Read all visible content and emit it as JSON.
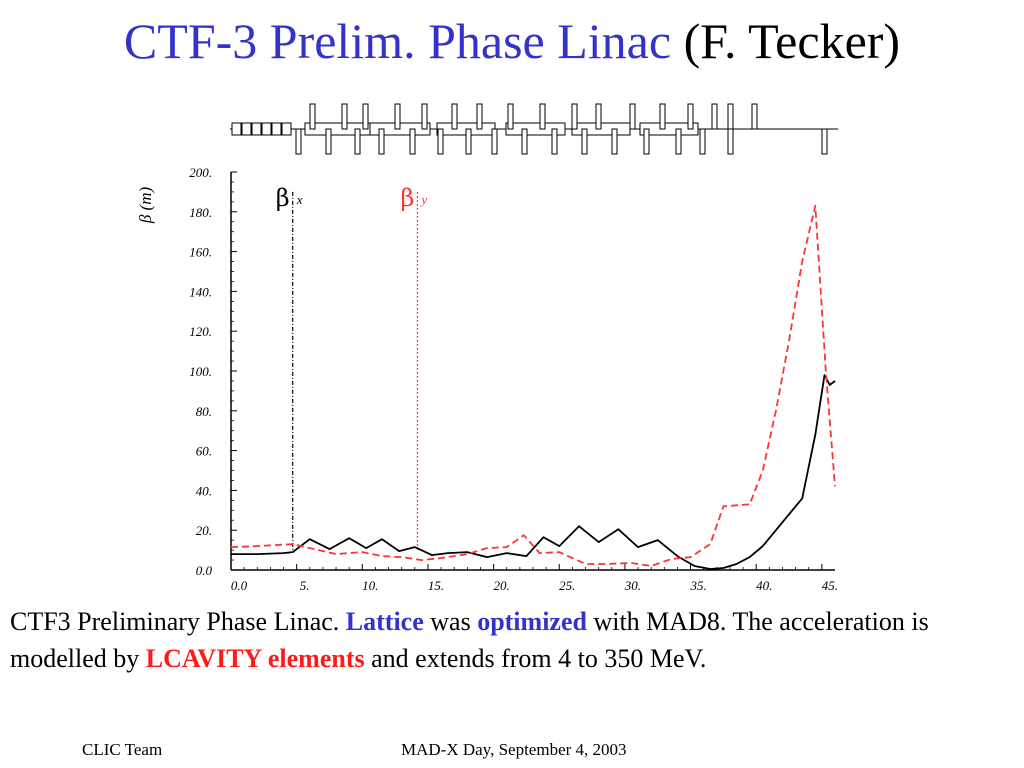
{
  "slide": {
    "title_main": "CTF-3 Prelim. Phase Linac",
    "title_author": "(F. Tecker)"
  },
  "caption": {
    "part1": "CTF3 Preliminary Phase Linac. ",
    "lattice": "Lattice",
    "part2": " was ",
    "optimized": "optimized",
    "part3": " with MAD8. The acceleration is modelled by ",
    "lcavity": "LCAVITY elements",
    "part4": " and extends from 4 to 350 MeV."
  },
  "footer": {
    "left": "CLIC Team",
    "center": "MAD-X Day, September 4, 2003"
  },
  "colors": {
    "title_blue": "#3333cc",
    "beta_y_red": "#ff3333",
    "beta_x_black": "#000000"
  },
  "chart_data": {
    "type": "line",
    "ylabel": "β  (m)",
    "xlim": [
      0,
      46
    ],
    "ylim": [
      0,
      200
    ],
    "x_ticks": [
      "0.0",
      "5.",
      "10.",
      "15.",
      "20.",
      "25.",
      "30.",
      "35.",
      "40.",
      "45."
    ],
    "y_ticks": [
      "0.0",
      "20.",
      "40.",
      "60.",
      "80.",
      "100.",
      "120.",
      "140.",
      "160.",
      "180.",
      "200."
    ],
    "legend": [
      {
        "symbol": "β",
        "subscript": "x",
        "at_x": 4.7
      },
      {
        "symbol": "β",
        "subscript": "y",
        "at_x": 14.2
      }
    ],
    "series": [
      {
        "name": "βx",
        "style": "solid",
        "color": "#000000",
        "x": [
          0,
          2,
          4,
          4.7,
          6,
          7.5,
          9,
          10.3,
          11.5,
          12.8,
          14,
          15.3,
          16.5,
          18,
          19.5,
          21,
          22.5,
          23.8,
          25,
          26.5,
          28,
          29.5,
          31,
          32.5,
          34,
          35.3,
          36.5,
          37.5,
          38.5,
          39.5,
          40.5,
          41.5,
          42.5,
          43.5,
          44.5,
          45.2,
          45.6,
          46
        ],
        "y": [
          8,
          8,
          8.5,
          9,
          15.5,
          10.5,
          16,
          11,
          15.5,
          9.5,
          11.5,
          7.5,
          8.5,
          9,
          6.5,
          8.5,
          7,
          16.5,
          12,
          22,
          14,
          20.5,
          11.5,
          15,
          7,
          2,
          0.5,
          1,
          3,
          6.5,
          12,
          20,
          28,
          36,
          68,
          98,
          93,
          95
        ]
      },
      {
        "name": "βy",
        "style": "dashed",
        "color": "#ff3333",
        "x": [
          0,
          2,
          4.7,
          6,
          8,
          10,
          11.5,
          13,
          14.5,
          16,
          18,
          19.5,
          21,
          22.3,
          23.5,
          25,
          27,
          28.5,
          30.5,
          32,
          33.5,
          35,
          36.5,
          37.5,
          38.5,
          39.5,
          40.5,
          41.5,
          42.5,
          43.5,
          44.5,
          45.3,
          46
        ],
        "y": [
          11.5,
          12,
          13,
          11,
          8,
          9,
          7,
          6.5,
          5,
          6,
          8,
          11,
          11.5,
          17.5,
          8.5,
          9,
          3,
          3,
          3.5,
          2,
          5.5,
          6.5,
          13,
          32,
          32.5,
          33,
          50,
          80,
          115,
          155,
          183,
          100,
          42
        ]
      }
    ]
  }
}
